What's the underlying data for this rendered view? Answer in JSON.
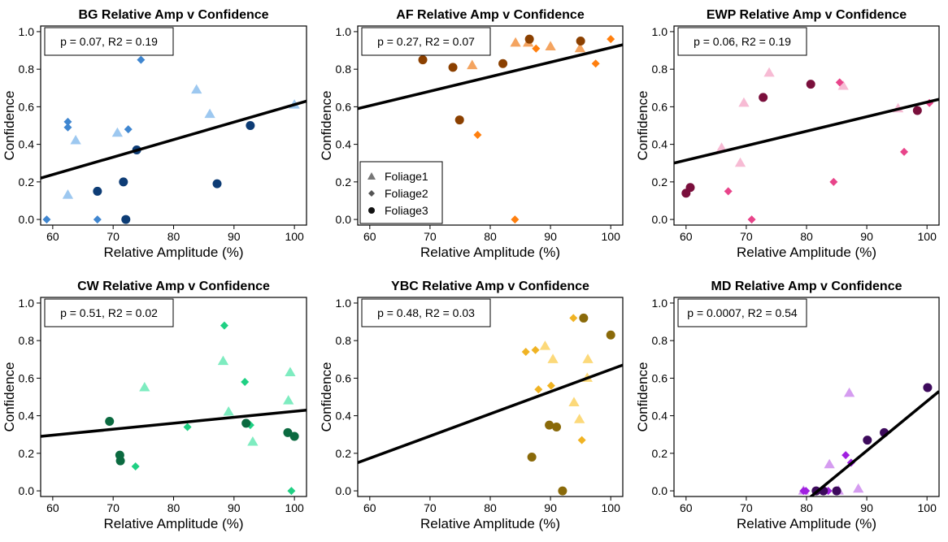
{
  "chart_data": [
    {
      "type": "scatter",
      "title": "BG Relative Amp v Confidence",
      "xlabel": "Relative Amplitude (%)",
      "ylabel": "Confidence",
      "xlim": [
        58,
        102
      ],
      "ylim": [
        -0.03,
        1.03
      ],
      "xticks": [
        60,
        70,
        80,
        90,
        100
      ],
      "yticks": [
        0.0,
        0.2,
        0.4,
        0.6,
        0.8,
        1.0
      ],
      "annotation": "p = 0.07, R2 = 0.19",
      "fit_line": {
        "x": [
          58,
          102
        ],
        "y": [
          0.22,
          0.63
        ]
      },
      "series": [
        {
          "name": "Foliage1",
          "marker": "triangle",
          "color": "#9dc8f0",
          "x": [
            62.5,
            63.8,
            70.7,
            83.8,
            86.0,
            100.0
          ],
          "y": [
            0.13,
            0.42,
            0.46,
            0.69,
            0.56,
            0.61
          ]
        },
        {
          "name": "Foliage2",
          "marker": "diamond",
          "color": "#3f86d0",
          "x": [
            59.0,
            62.5,
            62.5,
            67.4,
            72.5,
            74.6
          ],
          "y": [
            0.0,
            0.52,
            0.49,
            0.0,
            0.48,
            0.85
          ]
        },
        {
          "name": "Foliage3",
          "marker": "circle",
          "color": "#0d3c75",
          "x": [
            67.4,
            71.7,
            72.1,
            73.9,
            87.2,
            92.7
          ],
          "y": [
            0.15,
            0.2,
            0.0,
            0.37,
            0.19,
            0.5
          ]
        }
      ]
    },
    {
      "type": "scatter",
      "title": "AF Relative Amp v Confidence",
      "xlabel": "Relative Amplitude (%)",
      "ylabel": "Confidence",
      "xlim": [
        58,
        102
      ],
      "ylim": [
        -0.03,
        1.03
      ],
      "xticks": [
        60,
        70,
        80,
        90,
        100
      ],
      "yticks": [
        0.0,
        0.2,
        0.4,
        0.6,
        0.8,
        1.0
      ],
      "annotation": "p = 0.27, R2 = 0.07",
      "legend": {
        "position": "bottom-left",
        "entries": [
          "Foliage1",
          "Foliage2",
          "Foliage3"
        ]
      },
      "fit_line": {
        "x": [
          58,
          102
        ],
        "y": [
          0.59,
          0.93
        ]
      },
      "series": [
        {
          "name": "Foliage1",
          "marker": "triangle",
          "color": "#f4a460",
          "x": [
            77.0,
            84.2,
            86.3,
            90.0,
            94.9
          ],
          "y": [
            0.82,
            0.94,
            0.94,
            0.92,
            0.91
          ]
        },
        {
          "name": "Foliage2",
          "marker": "diamond",
          "color": "#ff7f0e",
          "x": [
            77.9,
            84.1,
            87.6,
            97.5,
            100.0
          ],
          "y": [
            0.45,
            0.0,
            0.91,
            0.83,
            0.96
          ]
        },
        {
          "name": "Foliage3",
          "marker": "circle",
          "color": "#8b4000",
          "x": [
            68.8,
            73.8,
            74.9,
            82.1,
            86.5,
            95.0
          ],
          "y": [
            0.85,
            0.81,
            0.53,
            0.83,
            0.96,
            0.95
          ]
        }
      ]
    },
    {
      "type": "scatter",
      "title": "EWP Relative Amp v Confidence",
      "xlabel": "Relative Amplitude (%)",
      "ylabel": "Confidence",
      "xlim": [
        58,
        102
      ],
      "ylim": [
        -0.03,
        1.03
      ],
      "xticks": [
        60,
        70,
        80,
        90,
        100
      ],
      "yticks": [
        0.0,
        0.2,
        0.4,
        0.6,
        0.8,
        1.0
      ],
      "annotation": "p = 0.06, R2 = 0.19",
      "fit_line": {
        "x": [
          58,
          102
        ],
        "y": [
          0.3,
          0.64
        ]
      },
      "series": [
        {
          "name": "Foliage1",
          "marker": "triangle",
          "color": "#f7bbd4",
          "x": [
            65.9,
            69.0,
            69.6,
            73.8,
            86.1,
            95.2
          ],
          "y": [
            0.38,
            0.3,
            0.62,
            0.78,
            0.71,
            0.59
          ]
        },
        {
          "name": "Foliage2",
          "marker": "diamond",
          "color": "#e8448a",
          "x": [
            67.0,
            70.9,
            84.5,
            85.5,
            96.2,
            100.4
          ],
          "y": [
            0.15,
            0.0,
            0.2,
            0.73,
            0.36,
            0.62
          ]
        },
        {
          "name": "Foliage3",
          "marker": "circle",
          "color": "#7a0f3c",
          "x": [
            60.0,
            60.7,
            72.8,
            80.7,
            98.4
          ],
          "y": [
            0.14,
            0.17,
            0.65,
            0.72,
            0.58
          ]
        }
      ]
    },
    {
      "type": "scatter",
      "title": "CW Relative Amp v Confidence",
      "xlabel": "Relative Amplitude (%)",
      "ylabel": "Confidence",
      "xlim": [
        58,
        102
      ],
      "ylim": [
        -0.03,
        1.03
      ],
      "xticks": [
        60,
        70,
        80,
        90,
        100
      ],
      "yticks": [
        0.0,
        0.2,
        0.4,
        0.6,
        0.8,
        1.0
      ],
      "annotation": "p = 0.51, R2 = 0.02",
      "fit_line": {
        "x": [
          58,
          102
        ],
        "y": [
          0.29,
          0.43
        ]
      },
      "series": [
        {
          "name": "Foliage1",
          "marker": "triangle",
          "color": "#7eecc0",
          "x": [
            75.2,
            88.2,
            89.1,
            93.1,
            99.0,
            99.3
          ],
          "y": [
            0.55,
            0.69,
            0.42,
            0.26,
            0.48,
            0.63
          ]
        },
        {
          "name": "Foliage2",
          "marker": "diamond",
          "color": "#1fd083",
          "x": [
            73.7,
            82.3,
            88.4,
            91.8,
            92.7,
            99.5
          ],
          "y": [
            0.13,
            0.34,
            0.88,
            0.58,
            0.35,
            0.0
          ]
        },
        {
          "name": "Foliage3",
          "marker": "circle",
          "color": "#0b6a40",
          "x": [
            69.4,
            71.1,
            71.2,
            92.0,
            98.9,
            100.0
          ],
          "y": [
            0.37,
            0.19,
            0.16,
            0.36,
            0.31,
            0.29
          ]
        }
      ]
    },
    {
      "type": "scatter",
      "title": "YBC Relative Amp v Confidence",
      "xlabel": "Relative Amplitude (%)",
      "ylabel": "Confidence",
      "xlim": [
        58,
        102
      ],
      "ylim": [
        -0.03,
        1.03
      ],
      "xticks": [
        60,
        70,
        80,
        90,
        100
      ],
      "yticks": [
        0.0,
        0.2,
        0.4,
        0.6,
        0.8,
        1.0
      ],
      "annotation": "p = 0.48, R2 = 0.03",
      "fit_line": {
        "x": [
          58,
          102
        ],
        "y": [
          0.15,
          0.67
        ]
      },
      "series": [
        {
          "name": "Foliage1",
          "marker": "triangle",
          "color": "#fcd97a",
          "x": [
            89.1,
            90.4,
            93.9,
            94.8,
            96.2,
            96.1
          ],
          "y": [
            0.77,
            0.7,
            0.47,
            0.38,
            0.7,
            0.6
          ]
        },
        {
          "name": "Foliage2",
          "marker": "diamond",
          "color": "#f0b323",
          "x": [
            85.9,
            87.5,
            88.0,
            90.1,
            93.8,
            95.2
          ],
          "y": [
            0.74,
            0.75,
            0.54,
            0.56,
            0.92,
            0.27
          ]
        },
        {
          "name": "Foliage3",
          "marker": "circle",
          "color": "#8a6a0a",
          "x": [
            86.9,
            89.8,
            91.0,
            92.0,
            95.5,
            100.0
          ],
          "y": [
            0.18,
            0.35,
            0.34,
            0.0,
            0.92,
            0.83
          ]
        }
      ]
    },
    {
      "type": "scatter",
      "title": "MD Relative Amp v Confidence",
      "xlabel": "Relative Amplitude (%)",
      "ylabel": "Confidence",
      "xlim": [
        58,
        102
      ],
      "ylim": [
        -0.03,
        1.03
      ],
      "xticks": [
        60,
        70,
        80,
        90,
        100
      ],
      "yticks": [
        0.0,
        0.2,
        0.4,
        0.6,
        0.8,
        1.0
      ],
      "annotation": "p = 0.0007, R2 = 0.54",
      "fit_line": {
        "x": [
          80.0,
          102
        ],
        "y": [
          -0.05,
          0.53
        ]
      },
      "series": [
        {
          "name": "Foliage1",
          "marker": "triangle",
          "color": "#d59cf0",
          "x": [
            79.5,
            83.8,
            85.3,
            87.1,
            88.6
          ],
          "y": [
            0.0,
            0.14,
            0.0,
            0.52,
            0.01
          ]
        },
        {
          "name": "Foliage2",
          "marker": "diamond",
          "color": "#a020e0",
          "x": [
            79.5,
            79.9,
            83.6,
            86.5,
            87.4
          ],
          "y": [
            0.0,
            0.0,
            0.0,
            0.19,
            0.15
          ]
        },
        {
          "name": "Foliage3",
          "marker": "circle",
          "color": "#3d0a5c",
          "x": [
            81.6,
            82.8,
            85.0,
            90.1,
            92.9,
            100.1
          ],
          "y": [
            0.0,
            0.0,
            0.0,
            0.27,
            0.31,
            0.55
          ]
        }
      ]
    }
  ]
}
